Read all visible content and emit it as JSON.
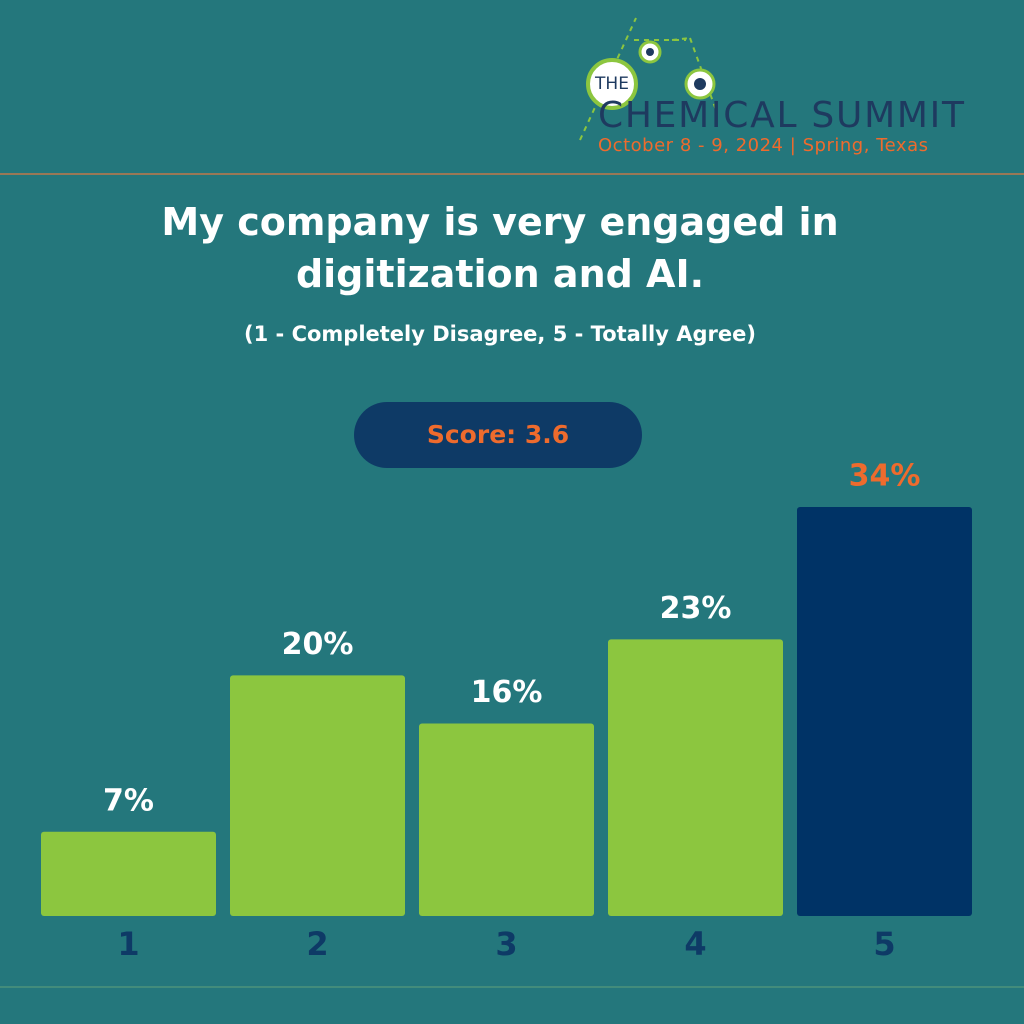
{
  "logo": {
    "the": "THE",
    "name": "CHEMICAL SUMMIT",
    "event": "October 8 - 9, 2024 | Spring, Texas"
  },
  "chart_data": {
    "type": "bar",
    "title": "My company is very engaged in digitization and AI.",
    "subtitle": "(1 - Completely Disagree, 5 - Totally Agree)",
    "annotation": "Score: 3.6",
    "categories": [
      "1",
      "2",
      "3",
      "4",
      "5"
    ],
    "values": [
      7,
      20,
      16,
      23,
      34
    ],
    "value_labels": [
      "7%",
      "20%",
      "16%",
      "23%",
      "34%"
    ],
    "colors": [
      "#8cc63f",
      "#8cc63f",
      "#8cc63f",
      "#8cc63f",
      "#003366"
    ],
    "label_colors": [
      "#ffffff",
      "#ffffff",
      "#ffffff",
      "#ffffff",
      "#ee6b2d"
    ]
  }
}
